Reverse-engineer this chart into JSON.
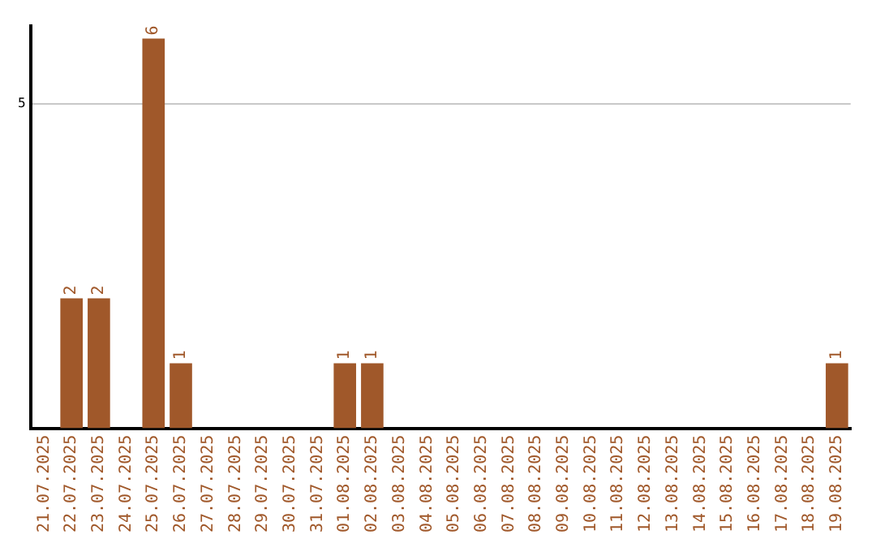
{
  "chart_data": {
    "type": "bar",
    "categories": [
      "21.07.2025",
      "22.07.2025",
      "23.07.2025",
      "24.07.2025",
      "25.07.2025",
      "26.07.2025",
      "27.07.2025",
      "28.07.2025",
      "29.07.2025",
      "30.07.2025",
      "31.07.2025",
      "01.08.2025",
      "02.08.2025",
      "03.08.2025",
      "04.08.2025",
      "05.08.2025",
      "06.08.2025",
      "07.08.2025",
      "08.08.2025",
      "09.08.2025",
      "10.08.2025",
      "11.08.2025",
      "12.08.2025",
      "13.08.2025",
      "14.08.2025",
      "15.08.2025",
      "16.08.2025",
      "17.08.2025",
      "18.08.2025",
      "19.08.2025"
    ],
    "values": [
      0,
      2,
      2,
      0,
      6,
      1,
      0,
      0,
      0,
      0,
      0,
      1,
      1,
      0,
      0,
      0,
      0,
      0,
      0,
      0,
      0,
      0,
      0,
      0,
      0,
      0,
      0,
      0,
      0,
      1
    ],
    "color": "#a0582a",
    "ylim": [
      0,
      6.2
    ],
    "yticks": [
      5
    ],
    "grid": "y",
    "value_labels": [
      null,
      "2",
      "2",
      null,
      "6",
      "1",
      null,
      null,
      null,
      null,
      null,
      "1",
      "1",
      null,
      null,
      null,
      null,
      null,
      null,
      null,
      null,
      null,
      null,
      null,
      null,
      null,
      null,
      null,
      null,
      "1"
    ],
    "legend": false
  }
}
